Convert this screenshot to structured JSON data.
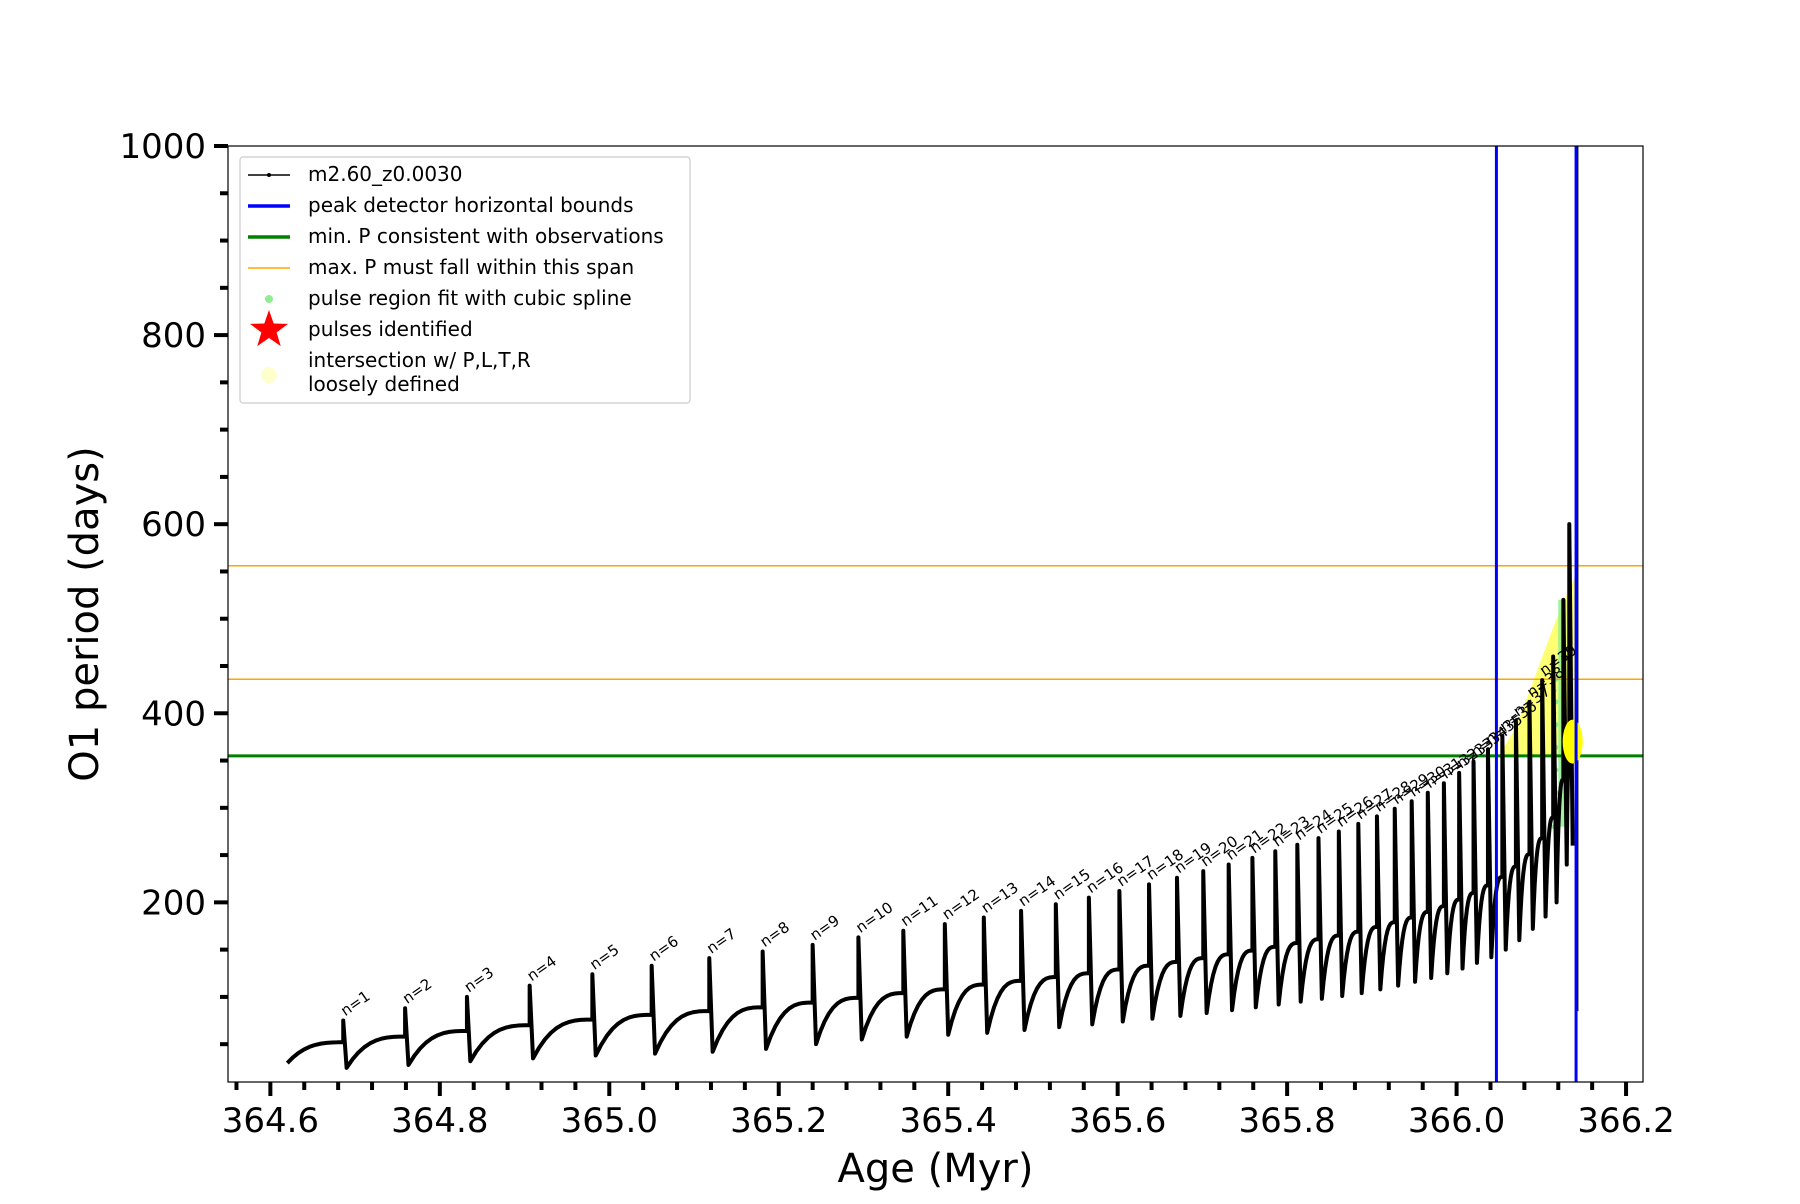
{
  "chart_data": {
    "type": "line",
    "xlabel": "Age (Myr)",
    "ylabel": "O1 period (days)",
    "xlim": [
      364.55,
      366.22
    ],
    "ylim": [
      10,
      1000
    ],
    "x_ticks": [
      364.6,
      364.8,
      365.0,
      365.2,
      365.4,
      365.6,
      365.8,
      366.0,
      366.2
    ],
    "x_tick_labels": [
      "364.6",
      "364.8",
      "365.0",
      "365.2",
      "365.4",
      "365.6",
      "365.8",
      "366.0",
      "366.2"
    ],
    "y_ticks": [
      200,
      400,
      600,
      800,
      1000
    ],
    "y_tick_labels": [
      "200",
      "400",
      "600",
      "800",
      "1000"
    ],
    "grid": false,
    "legend_position": "top-left",
    "legend": [
      {
        "label": "m2.60_z0.0030",
        "kind": "line-marker",
        "color": "#000000"
      },
      {
        "label": "peak detector horizontal bounds",
        "kind": "line",
        "color": "#0000ff"
      },
      {
        "label": "min. P consistent with observations",
        "kind": "line",
        "color": "#008000"
      },
      {
        "label": "max. P must fall within this span",
        "kind": "thin-line",
        "color": "#ffa500"
      },
      {
        "label": "pulse region fit with cubic spline",
        "kind": "dot",
        "color": "#90ee90"
      },
      {
        "label": "pulses identified",
        "kind": "star",
        "color": "#ff0000"
      },
      {
        "label": "intersection w/ P,L,T,R\nloosely defined",
        "kind": "dot",
        "color": "#ffffcc"
      }
    ],
    "vertical_lines": [
      {
        "x": 366.047,
        "color": "#0000ff"
      },
      {
        "x": 366.141,
        "color": "#0000ff"
      }
    ],
    "horizontal_lines": [
      {
        "y": 355,
        "color": "#008000",
        "width": 3
      },
      {
        "y": 436,
        "color": "#ffa500",
        "width": 1.5
      },
      {
        "y": 556,
        "color": "#ffa500",
        "width": 1.5
      }
    ],
    "series": [
      {
        "name": "m2.60_z0.0030",
        "color": "#000000",
        "start": {
          "x": 364.62,
          "y": 30
        },
        "pulses": [
          {
            "n": "n=1",
            "x": 364.686,
            "peak": 75,
            "min": 25,
            "base": 52
          },
          {
            "n": "n=2",
            "x": 364.759,
            "peak": 88,
            "min": 28,
            "base": 58
          },
          {
            "n": "n=3",
            "x": 364.832,
            "peak": 100,
            "min": 32,
            "base": 64
          },
          {
            "n": "n=4",
            "x": 364.906,
            "peak": 112,
            "min": 35,
            "base": 70
          },
          {
            "n": "n=5",
            "x": 364.98,
            "peak": 124,
            "min": 38,
            "base": 76
          },
          {
            "n": "n=6",
            "x": 365.05,
            "peak": 133,
            "min": 40,
            "base": 81
          },
          {
            "n": "n=7",
            "x": 365.118,
            "peak": 141,
            "min": 42,
            "base": 85
          },
          {
            "n": "n=8",
            "x": 365.181,
            "peak": 148,
            "min": 45,
            "base": 89
          },
          {
            "n": "n=9",
            "x": 365.24,
            "peak": 155,
            "min": 50,
            "base": 94
          },
          {
            "n": "n=10",
            "x": 365.294,
            "peak": 163,
            "min": 55,
            "base": 99
          },
          {
            "n": "n=11",
            "x": 365.347,
            "peak": 170,
            "min": 58,
            "base": 104
          },
          {
            "n": "n=12",
            "x": 365.396,
            "peak": 177,
            "min": 60,
            "base": 108
          },
          {
            "n": "n=13",
            "x": 365.442,
            "peak": 184,
            "min": 62,
            "base": 113
          },
          {
            "n": "n=14",
            "x": 365.486,
            "peak": 191,
            "min": 65,
            "base": 117
          },
          {
            "n": "n=15",
            "x": 365.527,
            "peak": 198,
            "min": 68,
            "base": 121
          },
          {
            "n": "n=16",
            "x": 365.566,
            "peak": 205,
            "min": 71,
            "base": 125
          },
          {
            "n": "n=17",
            "x": 365.602,
            "peak": 212,
            "min": 74,
            "base": 129
          },
          {
            "n": "n=18",
            "x": 365.637,
            "peak": 219,
            "min": 77,
            "base": 133
          },
          {
            "n": "n=19",
            "x": 365.67,
            "peak": 226,
            "min": 80,
            "base": 137
          },
          {
            "n": "n=20",
            "x": 365.701,
            "peak": 233,
            "min": 83,
            "base": 141
          },
          {
            "n": "n=21",
            "x": 365.731,
            "peak": 240,
            "min": 86,
            "base": 145
          },
          {
            "n": "n=22",
            "x": 365.759,
            "peak": 247,
            "min": 89,
            "base": 149
          },
          {
            "n": "n=23",
            "x": 365.786,
            "peak": 254,
            "min": 92,
            "base": 153
          },
          {
            "n": "n=24",
            "x": 365.812,
            "peak": 261,
            "min": 95,
            "base": 157
          },
          {
            "n": "n=25",
            "x": 365.837,
            "peak": 268,
            "min": 98,
            "base": 161
          },
          {
            "n": "n=26",
            "x": 365.861,
            "peak": 275,
            "min": 101,
            "base": 165
          },
          {
            "n": "n=27",
            "x": 365.884,
            "peak": 283,
            "min": 104,
            "base": 169
          },
          {
            "n": "n=28",
            "x": 365.906,
            "peak": 291,
            "min": 108,
            "base": 174
          },
          {
            "n": "n=29",
            "x": 365.927,
            "peak": 299,
            "min": 112,
            "base": 179
          },
          {
            "n": "n=30",
            "x": 365.947,
            "peak": 307,
            "min": 116,
            "base": 184
          },
          {
            "n": "n=31",
            "x": 365.966,
            "peak": 316,
            "min": 120,
            "base": 190
          },
          {
            "n": "n=32",
            "x": 365.985,
            "peak": 326,
            "min": 125,
            "base": 196
          },
          {
            "n": "n=33",
            "x": 366.003,
            "peak": 337,
            "min": 130,
            "base": 203
          },
          {
            "n": "n=34",
            "x": 366.02,
            "peak": 349,
            "min": 136,
            "base": 210
          },
          {
            "n": "n=35",
            "x": 366.037,
            "peak": 362,
            "min": 142,
            "base": 218
          },
          {
            "n": "n=36",
            "x": 366.054,
            "peak": 376,
            "min": 150,
            "base": 227
          },
          {
            "n": "n=37",
            "x": 366.07,
            "peak": 392,
            "min": 160,
            "base": 238
          },
          {
            "n": "n=38",
            "x": 366.086,
            "peak": 412,
            "min": 172,
            "base": 251
          },
          {
            "n": "n=39",
            "x": 366.101,
            "peak": 435,
            "min": 185,
            "base": 268
          },
          {
            "n": "",
            "x": 366.114,
            "peak": 460,
            "min": 200,
            "base": 290
          },
          {
            "n": "",
            "x": 366.126,
            "peak": 520,
            "min": 240,
            "base": 330
          },
          {
            "n": "",
            "x": 366.133,
            "peak": 600,
            "min": 260,
            "base": 350
          }
        ],
        "final_spike": {
          "x": 366.142,
          "y_min": 85,
          "y_max": 1000
        }
      }
    ],
    "spline_region": {
      "x_start": 366.1,
      "x_end": 366.14,
      "y_min": 280,
      "y_max": 520,
      "color": "#90ee90"
    },
    "yellow_region": {
      "x_start": 366.05,
      "x_end": 366.14,
      "y_min": 355,
      "y_max": 545,
      "color": "#ffff00"
    },
    "yellow_blob": {
      "x": 366.137,
      "y": 370
    }
  }
}
